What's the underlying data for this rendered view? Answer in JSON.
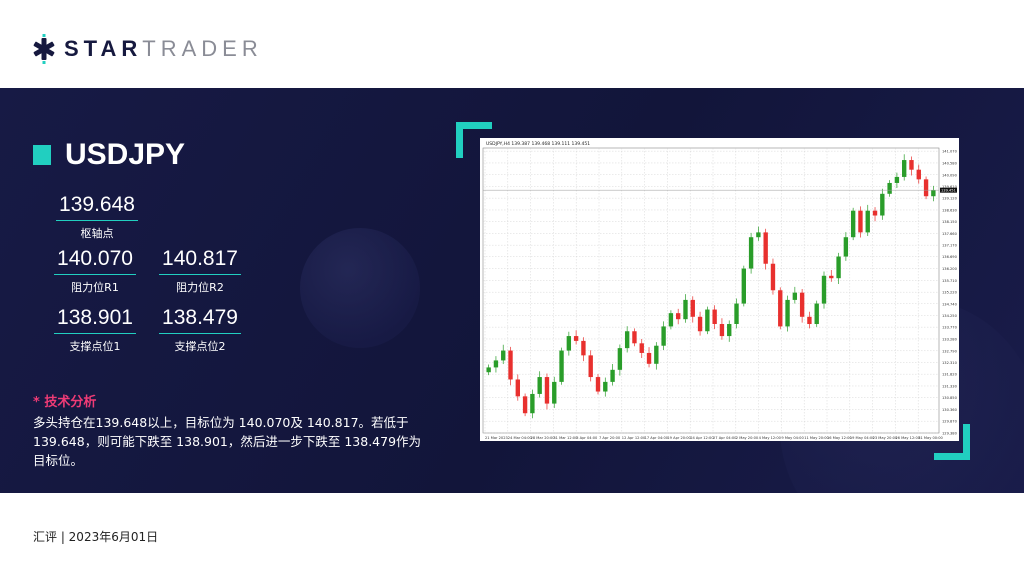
{
  "brand": {
    "name_bold": "STAR",
    "name_light": "TRADER",
    "accent": "#21cfc0",
    "navy": "#16193f"
  },
  "pair": "USDJPY",
  "levels": {
    "pivot": {
      "value": "139.648",
      "label": "枢轴点"
    },
    "r1": {
      "value": "140.070",
      "label": "阻力位R1"
    },
    "r2": {
      "value": "140.817",
      "label": "阻力位R2"
    },
    "s1": {
      "value": "138.901",
      "label": "支撑点位1"
    },
    "s2": {
      "value": "138.479",
      "label": "支撑点位2"
    }
  },
  "analysis": {
    "title": "* 技术分析",
    "text": "多头持仓在139.648以上，目标位为 140.070及 140.817。若低于139.648，则可能下跌至 138.901，然后进一步下跌至 138.479作为目标位。"
  },
  "footer": "汇评 | 2023年6月01日",
  "chart_data": {
    "type": "candlestick",
    "header": "USDJPY,H4 139.387 139.468 139.111 139.451",
    "current_price": "139.451",
    "up_color": "#2a9d2a",
    "down_color": "#e8302e",
    "ylim": [
      129.38,
      141.2
    ],
    "y_ticks": [
      "141.070",
      "140.580",
      "140.090",
      "139.610",
      "139.120",
      "138.630",
      "138.150",
      "137.660",
      "137.170",
      "136.690",
      "136.200",
      "135.710",
      "135.220",
      "134.740",
      "134.250",
      "133.770",
      "133.280",
      "132.790",
      "132.310",
      "131.820",
      "131.330",
      "130.850",
      "130.360",
      "129.870",
      "129.380"
    ],
    "x_ticks": [
      "21 Mar 2023",
      "24 Mar 04:00",
      "28 Mar 20:00",
      "31 Mar 12:00",
      "5 Apr 04:00",
      "7 Apr 20:00",
      "12 Apr 12:00",
      "17 Apr 04:00",
      "19 Apr 20:00",
      "24 Apr 12:00",
      "27 Apr 04:00",
      "2 May 20:00",
      "4 May 12:00",
      "9 May 04:00",
      "11 May 20:00",
      "16 May 12:00",
      "19 May 04:00",
      "23 May 20:00",
      "26 May 12:00",
      "31 May 00:00"
    ],
    "closes": [
      132.1,
      132.39,
      132.8,
      131.6,
      130.9,
      130.2,
      131.0,
      131.7,
      130.6,
      131.5,
      132.8,
      133.4,
      133.2,
      132.6,
      131.7,
      131.1,
      131.5,
      132.0,
      132.9,
      133.6,
      133.1,
      132.7,
      132.25,
      133.0,
      133.8,
      134.35,
      134.1,
      134.9,
      134.2,
      133.6,
      134.5,
      133.9,
      133.4,
      133.9,
      134.75,
      136.2,
      137.5,
      137.7,
      136.4,
      135.3,
      133.8,
      134.9,
      135.2,
      134.2,
      133.9,
      134.75,
      135.9,
      135.8,
      136.7,
      137.5,
      138.6,
      137.7,
      138.6,
      138.4,
      139.3,
      139.75,
      140.0,
      140.7,
      140.3,
      139.9,
      139.2,
      139.45
    ]
  }
}
